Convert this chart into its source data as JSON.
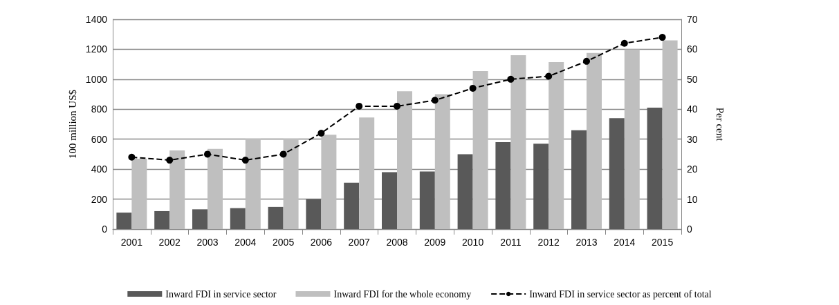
{
  "chart_data": {
    "type": "bar",
    "ylabel": "100 million US$",
    "y2label": "Per cent",
    "categories": [
      "2001",
      "2002",
      "2003",
      "2004",
      "2005",
      "2006",
      "2007",
      "2008",
      "2009",
      "2010",
      "2011",
      "2012",
      "2013",
      "2014",
      "2015"
    ],
    "series": [
      {
        "name": "Inward FDI in service sector",
        "color": "#595959",
        "values": [
          110,
          120,
          132,
          140,
          148,
          200,
          310,
          380,
          385,
          500,
          580,
          570,
          660,
          740,
          810
        ]
      },
      {
        "name": "Inward FDI for the whole economy",
        "color": "#bfbfbf",
        "values": [
          470,
          525,
          535,
          605,
          605,
          630,
          745,
          920,
          900,
          1055,
          1160,
          1115,
          1175,
          1200,
          1260
        ]
      },
      {
        "name": "Inward FDI in service sector as percent of total",
        "type": "line",
        "axis": "y2",
        "color": "#000000",
        "marker": "circle",
        "line_style": "dashed",
        "values": [
          24,
          23,
          25,
          23,
          25,
          32,
          41,
          41,
          43,
          47,
          50,
          51,
          56,
          62,
          64
        ]
      }
    ],
    "ylim": [
      0,
      1400
    ],
    "yticks": [
      0,
      200,
      400,
      600,
      800,
      1000,
      1200,
      1400
    ],
    "y2lim": [
      0,
      70
    ],
    "y2ticks": [
      0,
      10,
      20,
      30,
      40,
      50,
      60,
      70
    ],
    "grid": "y",
    "legend": "bottom"
  }
}
